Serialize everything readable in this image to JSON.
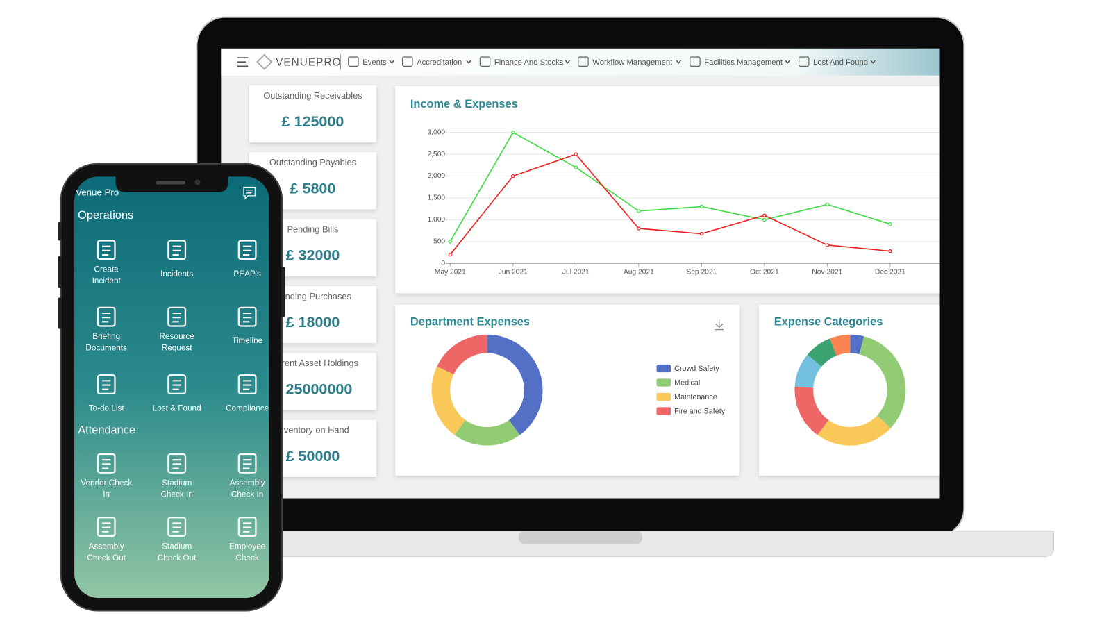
{
  "nav": {
    "brand": "VENUEPRO",
    "items": [
      "Events",
      "Accreditation",
      "Finance And Stocks",
      "Workflow Management",
      "Facilities Management",
      "Lost And Found"
    ]
  },
  "kpis": [
    {
      "title": "Outstanding Receivables",
      "value": "£ 125000"
    },
    {
      "title": "Outstanding Payables",
      "value": "£ 5800"
    },
    {
      "title": "Pending Bills",
      "value": "£ 32000"
    },
    {
      "title": "Pending Purchases",
      "value": "£ 18000"
    },
    {
      "title": "Current Asset Holdings",
      "value": "£ 25000000"
    },
    {
      "title": "Inventory on Hand",
      "value": "£ 50000"
    }
  ],
  "chart_data": [
    {
      "type": "line",
      "title": "Income & Expenses",
      "categories": [
        "May 2021",
        "Jun 2021",
        "Jul 2021",
        "Aug 2021",
        "Sep 2021",
        "Oct 2021",
        "Nov 2021",
        "Dec 2021"
      ],
      "series": [
        {
          "color": "#3ddc3d",
          "values": [
            500,
            3000,
            2200,
            1200,
            1300,
            1000,
            1350,
            900
          ]
        },
        {
          "color": "#f01e1e",
          "values": [
            200,
            2000,
            2500,
            800,
            680,
            1100,
            420,
            280
          ]
        }
      ],
      "ylim": [
        0,
        3000
      ],
      "yticks": [
        0,
        500,
        {
          "value": 1000,
          "label": "1,000"
        },
        {
          "value": 1500,
          "label": "1,500"
        },
        {
          "value": 2000,
          "label": "2,000"
        },
        {
          "value": 2500,
          "label": "2,500"
        },
        {
          "value": 3000,
          "label": "3,000"
        }
      ],
      "grid": true
    },
    {
      "type": "donut",
      "title": "Department Expenses",
      "categories": [
        "Crowd Safety",
        "Medical",
        "Maintenance",
        "Fire and Safety"
      ],
      "values": [
        40,
        20,
        22,
        18
      ],
      "colors": [
        "#5470c6",
        "#91cc75",
        "#fac858",
        "#ee6666"
      ],
      "legend": "right"
    },
    {
      "type": "donut",
      "title": "Expense Categories",
      "values": [
        4,
        33,
        23,
        16,
        10,
        8,
        6
      ],
      "colors": [
        "#5470c6",
        "#91cc75",
        "#fac858",
        "#ee6666",
        "#73c0de",
        "#3ba272",
        "#fc8452"
      ]
    }
  ],
  "phone": {
    "title": "Venue Pro",
    "sections": [
      {
        "title": "Operations",
        "items": [
          [
            "Create",
            "Incident"
          ],
          [
            "Incidents"
          ],
          [
            "PEAP's"
          ],
          [
            "Briefing",
            "Documents"
          ],
          [
            "Resource",
            "Request"
          ],
          [
            "Timeline"
          ],
          [
            "To-do List"
          ],
          [
            "Lost & Found"
          ],
          [
            "Compliance"
          ]
        ]
      },
      {
        "title": "Attendance",
        "items": [
          [
            "Vendor Check",
            "In"
          ],
          [
            "Stadium",
            "Check In"
          ],
          [
            "Assembly",
            "Check In"
          ],
          [
            "Assembly",
            "Check Out"
          ],
          [
            "Stadium",
            "Check Out"
          ],
          [
            "Employee",
            "Check"
          ]
        ]
      }
    ]
  }
}
